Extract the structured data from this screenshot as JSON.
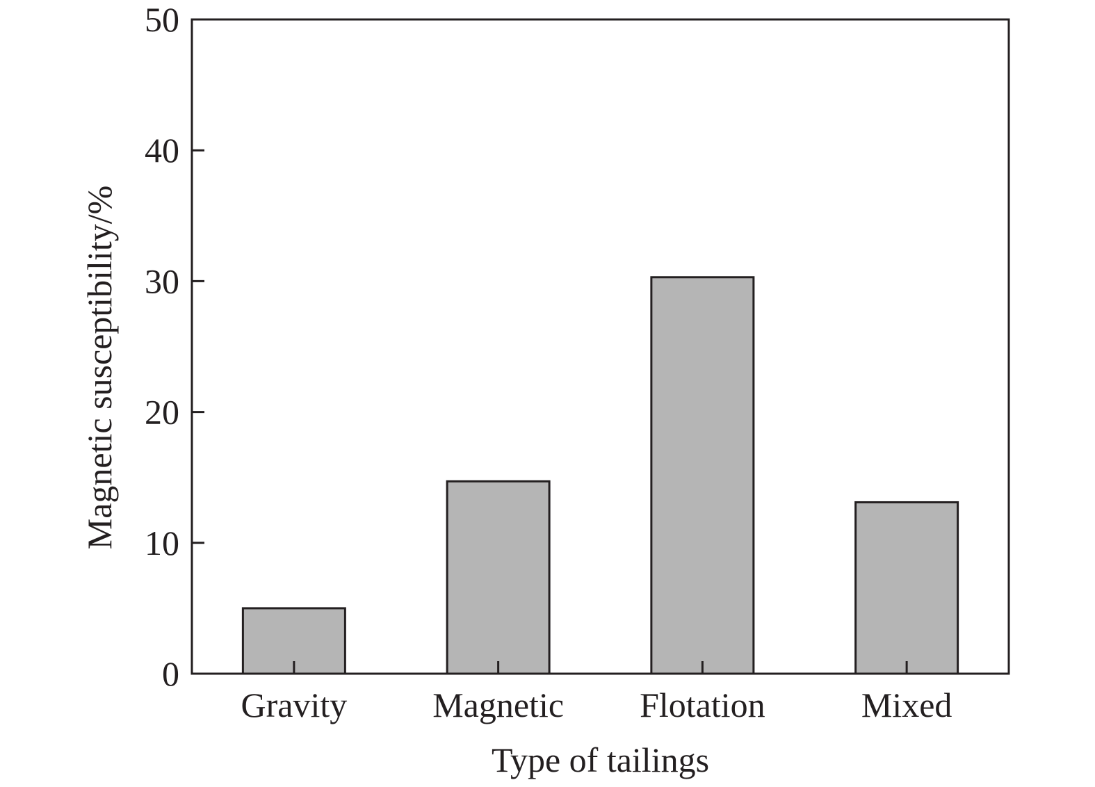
{
  "chart_data": {
    "type": "bar",
    "title": "",
    "xlabel": "Type of tailings",
    "ylabel": "Magnetic susceptibility/%",
    "categories": [
      "Gravity",
      "Magnetic",
      "Flotation",
      "Mixed"
    ],
    "values": [
      5.0,
      14.7,
      30.3,
      13.1
    ],
    "ylim": [
      0,
      50
    ],
    "yticks": [
      0,
      10,
      20,
      30,
      40,
      50
    ],
    "yticklabels": [
      "0",
      "10",
      "20",
      "30",
      "40",
      "50"
    ],
    "grid": false,
    "legend": false,
    "colors": {
      "bar_fill": "#b5b5b5",
      "bar_stroke": "#231f20",
      "axis": "#231f20",
      "text": "#231f20"
    }
  }
}
